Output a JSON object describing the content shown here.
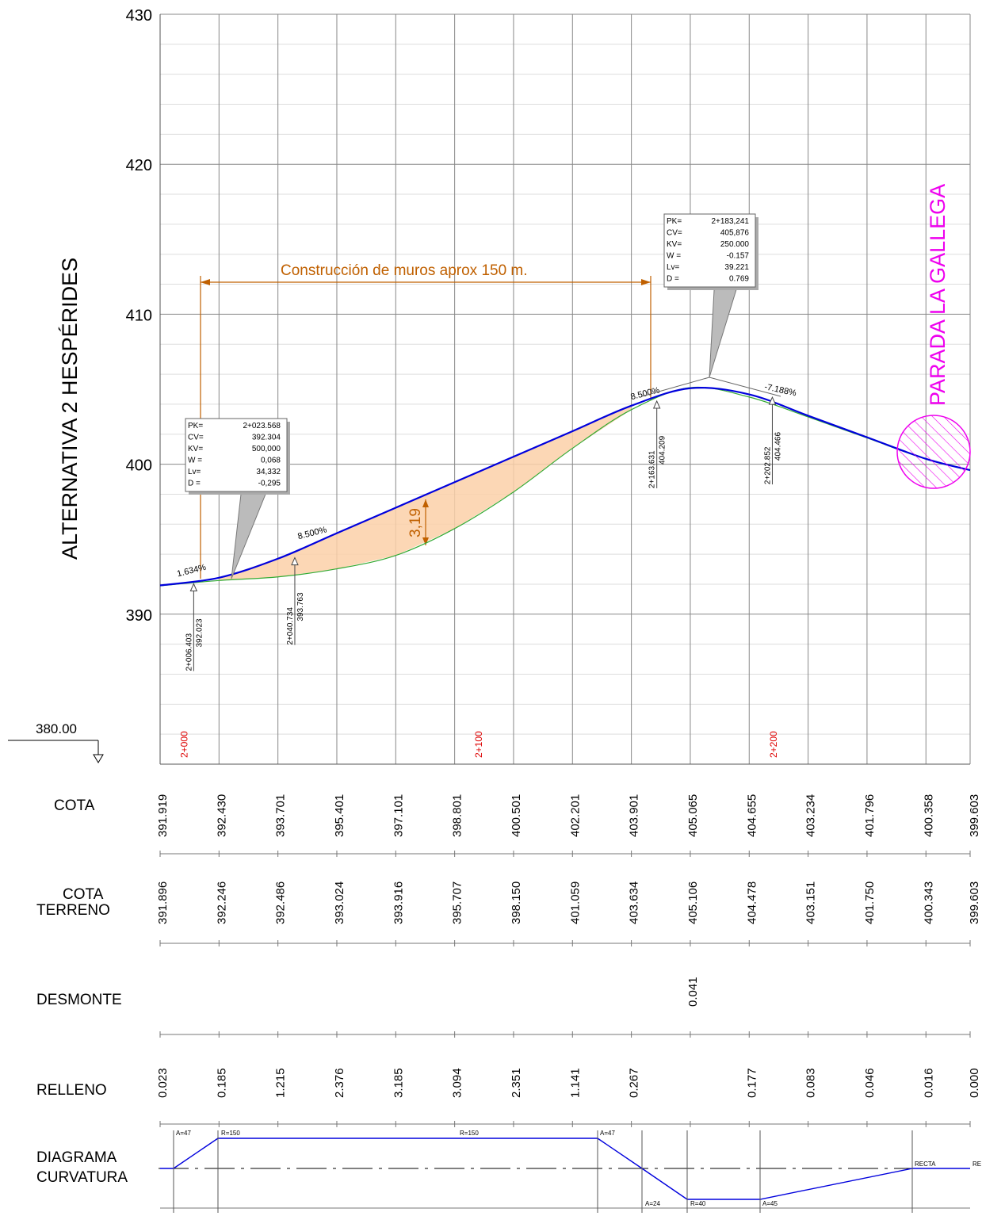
{
  "title_vertical": "ALTERNATIVA 2 HESPÉRIDES",
  "stop_label": "PARADA LA GALLEGA",
  "wall_note": "Construcción de muros aprox 150 m.",
  "depth_label": "3,19",
  "datum_label": "380.00",
  "chart_data": {
    "type": "line",
    "y_ticks": [
      {
        "value": 390,
        "label": "390"
      },
      {
        "value": 400,
        "label": "400"
      },
      {
        "value": 410,
        "label": "410"
      },
      {
        "value": 420,
        "label": "420"
      },
      {
        "value": 430,
        "label": "430"
      }
    ],
    "ylim": [
      380,
      430
    ],
    "xlim": [
      1995,
      2270
    ],
    "grid": true,
    "pk_labels": [
      {
        "x": 2000,
        "label": "2+000"
      },
      {
        "x": 2100,
        "label": "2+100"
      },
      {
        "x": 2200,
        "label": "2+200"
      }
    ],
    "stations": [
      1995,
      2015,
      2035,
      2055,
      2075,
      2095,
      2115,
      2135,
      2155,
      2175,
      2195,
      2215,
      2235,
      2255,
      2270
    ],
    "series": [
      {
        "values": [
          391.919,
          392.43,
          393.701,
          395.401,
          397.101,
          398.801,
          400.501,
          402.201,
          403.901,
          405.065,
          404.655,
          403.234,
          401.796,
          400.358,
          399.603
        ]
      },
      {
        "values": [
          391.896,
          392.246,
          392.486,
          393.024,
          393.916,
          395.707,
          398.15,
          401.059,
          403.634,
          405.106,
          404.478,
          403.151,
          401.75,
          400.343,
          399.603
        ]
      }
    ],
    "grades": [
      {
        "x": 2001,
        "y": 392.5,
        "label": "1.634%"
      },
      {
        "x": 2042,
        "y": 395.0,
        "label": "8.500%"
      },
      {
        "x": 2155,
        "y": 404.3,
        "label": "8.500%"
      },
      {
        "x": 2200,
        "y": 405.0,
        "label": "-7.188%"
      }
    ],
    "markers": [
      {
        "x": 2006.403,
        "y": 392.023,
        "pk": "2+006.403",
        "z": "392.023"
      },
      {
        "x": 2040.734,
        "y": 393.763,
        "pk": "2+040.734",
        "z": "393.763"
      },
      {
        "x": 2163.631,
        "y": 404.209,
        "pk": "2+163.631",
        "z": "404.209"
      },
      {
        "x": 2202.852,
        "y": 404.466,
        "pk": "2+202.852",
        "z": "404.466"
      }
    ],
    "info_boxes": [
      {
        "rows": [
          [
            "PK=",
            "2+023.568"
          ],
          [
            "CV=",
            "392.304"
          ],
          [
            "KV=",
            "500,000"
          ],
          [
            "W =",
            "0,068"
          ],
          [
            "Lv=",
            "34,332"
          ],
          [
            "D =",
            "-0,295"
          ]
        ]
      },
      {
        "rows": [
          [
            "PK=",
            "2+183,241"
          ],
          [
            "CV=",
            "405,876"
          ],
          [
            "KV=",
            "250.000"
          ],
          [
            "W =",
            "-0.157"
          ],
          [
            "Lv=",
            "39.221"
          ],
          [
            "D =",
            "0.769"
          ]
        ]
      }
    ]
  },
  "bands": {
    "cota": {
      "label": "COTA",
      "values": [
        "391.919",
        "392.430",
        "393.701",
        "395.401",
        "397.101",
        "398.801",
        "400.501",
        "402.201",
        "403.901",
        "405.065",
        "404.655",
        "403.234",
        "401.796",
        "400.358",
        "399.603"
      ]
    },
    "cota_terreno": {
      "label_line1": "COTA",
      "label_line2": "TERRENO",
      "values": [
        "391.896",
        "392.246",
        "392.486",
        "393.024",
        "393.916",
        "395.707",
        "398.150",
        "401.059",
        "403.634",
        "405.106",
        "404.478",
        "403.151",
        "401.750",
        "400.343",
        "399.603"
      ]
    },
    "desmonte": {
      "label": "DESMONTE",
      "values": [
        "",
        "",
        "",
        "",
        "",
        "",
        "",
        "",
        "",
        "0.041",
        "",
        "",
        "",
        "",
        ""
      ]
    },
    "relleno": {
      "label": "RELLENO",
      "values": [
        "0.023",
        "0.185",
        "1.215",
        "2.376",
        "3.185",
        "3.094",
        "2.351",
        "1.141",
        "0.267",
        "",
        "0.177",
        "0.083",
        "0.046",
        "0.016",
        "0.000"
      ]
    },
    "curvatura": {
      "label_line1": "DIAGRAMA",
      "label_line2": "CURVATURA",
      "labels": [
        "A=47",
        "R=150",
        "R=150",
        "A=47",
        "A=24",
        "R=40",
        "A=45",
        "RECTA",
        "RE"
      ]
    }
  },
  "colors": {
    "rasante": "#0000dd",
    "terreno": "#33aa33",
    "fill": "#fbd0a8",
    "note": "#c06000",
    "stop": "#ee00ee",
    "pk": "#dd0000"
  }
}
